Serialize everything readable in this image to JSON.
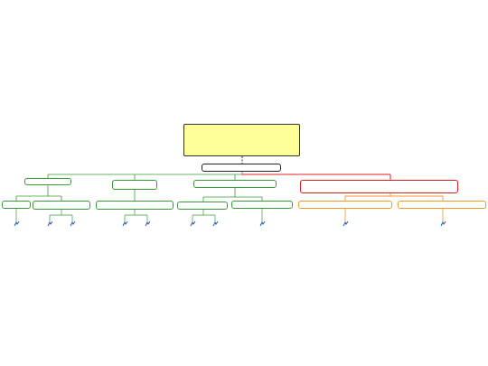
{
  "colors": {
    "note_fill": "#ffff99",
    "main_border": "#222222",
    "branch_green": "#3a9a3a",
    "branch_red": "#e02020",
    "branch_orange": "#f09a28",
    "icon_blue": "#2a5ab0"
  },
  "note": {
    "lines": [
      "",
      "",
      "",
      "",
      "",
      "",
      "",
      "",
      "",
      ""
    ]
  },
  "root": {
    "text": ""
  },
  "branches": [
    {
      "tag": "",
      "text": ""
    },
    {
      "tag": "",
      "text": ""
    },
    {
      "tag": "",
      "text": ""
    },
    {
      "tag": "",
      "text": ""
    }
  ],
  "subnodes": [
    {
      "tag": "",
      "text": ""
    },
    {
      "tag": "",
      "text": ""
    },
    {
      "tag": "",
      "text": ""
    },
    {
      "tag": "",
      "text": ""
    },
    {
      "tag": "",
      "text": ""
    },
    {
      "tag": "",
      "text": ""
    },
    {
      "tag": "",
      "text": ""
    }
  ],
  "leaves": [
    {
      "icon": "file-icon",
      "lines": [
        "",
        ""
      ]
    },
    {
      "icon": "file-icon",
      "lines": [
        "",
        ""
      ]
    },
    {
      "icon": "file-icon",
      "lines": [
        "",
        ""
      ]
    },
    {
      "icon": "file-icon",
      "lines": [
        "",
        ""
      ]
    },
    {
      "icon": "file-icon",
      "lines": [
        "",
        ""
      ]
    },
    {
      "icon": "file-icon",
      "lines": [
        "",
        ""
      ]
    },
    {
      "icon": "file-icon",
      "lines": [
        "",
        ""
      ]
    },
    {
      "icon": "file-icon",
      "lines": [
        "",
        ""
      ]
    },
    {
      "icon": "file-icon",
      "lines": [
        "",
        ""
      ]
    },
    {
      "icon": "file-icon",
      "lines": [
        "",
        ""
      ]
    }
  ]
}
